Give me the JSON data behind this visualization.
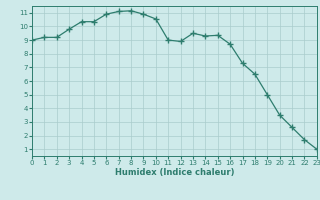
{
  "x": [
    0,
    1,
    2,
    3,
    4,
    5,
    6,
    7,
    8,
    9,
    10,
    11,
    12,
    13,
    14,
    15,
    16,
    17,
    18,
    19,
    20,
    21,
    22,
    23
  ],
  "y": [
    9.0,
    9.2,
    9.2,
    9.8,
    10.35,
    10.35,
    10.9,
    11.1,
    11.15,
    10.9,
    10.55,
    9.0,
    8.9,
    9.5,
    9.3,
    9.35,
    8.7,
    7.3,
    6.5,
    5.0,
    3.5,
    2.6,
    1.7,
    1.0
  ],
  "xlabel": "Humidex (Indice chaleur)",
  "line_color": "#2e7d6e",
  "marker": "+",
  "marker_size": 4,
  "bg_color": "#ceeaea",
  "grid_color": "#aacccc",
  "xlim": [
    0,
    23
  ],
  "ylim": [
    0.5,
    11.5
  ],
  "xticks": [
    0,
    1,
    2,
    3,
    4,
    5,
    6,
    7,
    8,
    9,
    10,
    11,
    12,
    13,
    14,
    15,
    16,
    17,
    18,
    19,
    20,
    21,
    22,
    23
  ],
  "yticks": [
    1,
    2,
    3,
    4,
    5,
    6,
    7,
    8,
    9,
    10,
    11
  ],
  "xlabel_fontsize": 6.0,
  "tick_fontsize": 5.0
}
